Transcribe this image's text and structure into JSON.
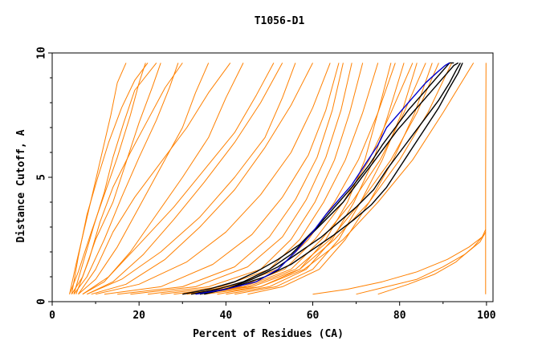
{
  "chart_data": {
    "type": "line",
    "title": "T1056-D1",
    "xlabel": "Percent of Residues (CA)",
    "ylabel": "Distance Cutoff, A",
    "xlim": [
      0,
      101.5
    ],
    "ylim": [
      0,
      10
    ],
    "xticks": [
      0,
      20,
      40,
      60,
      80,
      100
    ],
    "yticks": [
      0,
      5,
      10
    ],
    "grid": false,
    "colors": {
      "orange": "#ff8000",
      "black": "#000000",
      "blue": "#0000cc"
    },
    "series": [
      {
        "color": "orange",
        "x": [
          4,
          5.5,
          7.5,
          9.5,
          11.5,
          13.5,
          15,
          17
        ],
        "y": [
          0.3,
          1.5,
          3.0,
          4.5,
          6.0,
          7.5,
          8.8,
          9.6
        ]
      },
      {
        "color": "orange",
        "x": [
          4,
          6,
          9,
          12,
          15,
          18,
          20,
          21.5
        ],
        "y": [
          0.3,
          1.2,
          2.8,
          4.3,
          5.8,
          7.5,
          8.8,
          9.6
        ]
      },
      {
        "color": "orange",
        "x": [
          4.5,
          7,
          10,
          14,
          17,
          20,
          23,
          25
        ],
        "y": [
          0.3,
          1.0,
          2.5,
          4.0,
          5.6,
          7.2,
          8.6,
          9.6
        ]
      },
      {
        "color": "orange",
        "x": [
          5,
          8,
          12,
          16,
          20,
          24,
          27,
          29
        ],
        "y": [
          0.3,
          1.0,
          2.5,
          4.2,
          5.8,
          7.3,
          8.6,
          9.6
        ]
      },
      {
        "color": "orange",
        "x": [
          6,
          10,
          15,
          20,
          25,
          30,
          33,
          36
        ],
        "y": [
          0.3,
          0.9,
          2.2,
          3.8,
          5.4,
          7.0,
          8.4,
          9.6
        ]
      },
      {
        "color": "orange",
        "x": [
          7,
          12,
          18,
          24,
          30,
          36,
          40,
          44
        ],
        "y": [
          0.3,
          0.8,
          2.0,
          3.5,
          5.0,
          6.6,
          8.2,
          9.6
        ]
      },
      {
        "color": "orange",
        "x": [
          8,
          14,
          21,
          28,
          35,
          42,
          48,
          53
        ],
        "y": [
          0.3,
          0.8,
          1.9,
          3.3,
          4.8,
          6.4,
          8.0,
          9.6
        ]
      },
      {
        "color": "orange",
        "x": [
          9,
          17,
          26,
          34,
          42,
          49,
          55,
          60
        ],
        "y": [
          0.3,
          0.7,
          1.7,
          3.0,
          4.5,
          6.2,
          7.9,
          9.6
        ]
      },
      {
        "color": "orange",
        "x": [
          10,
          20,
          31,
          40,
          48,
          55,
          60,
          64
        ],
        "y": [
          0.3,
          0.7,
          1.6,
          2.8,
          4.3,
          6.0,
          7.8,
          9.6
        ]
      },
      {
        "color": "orange",
        "x": [
          12,
          25,
          37,
          46,
          53,
          59,
          63,
          66
        ],
        "y": [
          0.3,
          0.6,
          1.5,
          2.7,
          4.2,
          5.9,
          7.7,
          9.6
        ]
      },
      {
        "color": "orange",
        "x": [
          15,
          30,
          42,
          50,
          56,
          61,
          64.5,
          67
        ],
        "y": [
          0.3,
          0.6,
          1.4,
          2.6,
          4.1,
          5.8,
          7.7,
          9.6
        ]
      },
      {
        "color": "orange",
        "x": [
          18,
          33,
          45,
          53,
          58.5,
          63,
          66.5,
          69
        ],
        "y": [
          0.3,
          0.6,
          1.4,
          2.6,
          4.1,
          5.8,
          7.7,
          9.6
        ]
      },
      {
        "color": "orange",
        "x": [
          22,
          36,
          48,
          55,
          60.5,
          65,
          68.5,
          71.5
        ],
        "y": [
          0.3,
          0.6,
          1.3,
          2.5,
          4.0,
          5.7,
          7.6,
          9.6
        ]
      },
      {
        "color": "orange",
        "x": [
          25,
          39,
          50,
          57,
          62.5,
          67.5,
          71.5,
          75
        ],
        "y": [
          0.3,
          0.6,
          1.3,
          2.5,
          4.0,
          5.7,
          7.6,
          9.6
        ]
      },
      {
        "color": "orange",
        "x": [
          28,
          41,
          52,
          59,
          65,
          70.5,
          75,
          79
        ],
        "y": [
          0.3,
          0.6,
          1.3,
          2.5,
          4.0,
          5.7,
          7.6,
          9.6
        ]
      },
      {
        "color": "orange",
        "x": [
          30,
          43,
          53.5,
          60.5,
          67,
          73,
          78,
          83
        ],
        "y": [
          0.3,
          0.6,
          1.3,
          2.5,
          4.0,
          5.7,
          7.6,
          9.6
        ]
      },
      {
        "color": "orange",
        "x": [
          31,
          44,
          55,
          62,
          69,
          75.5,
          81,
          86
        ],
        "y": [
          0.3,
          0.6,
          1.3,
          2.5,
          4.0,
          5.7,
          7.6,
          9.6
        ]
      },
      {
        "color": "orange",
        "x": [
          32,
          45,
          56,
          64,
          71,
          78,
          84,
          89
        ],
        "y": [
          0.3,
          0.6,
          1.3,
          2.5,
          4.0,
          5.7,
          7.6,
          9.6
        ]
      },
      {
        "color": "orange",
        "x": [
          33,
          46,
          57,
          65,
          73,
          80,
          86.5,
          92
        ],
        "y": [
          0.3,
          0.6,
          1.3,
          2.5,
          4.0,
          5.7,
          7.6,
          9.6
        ]
      },
      {
        "color": "orange",
        "x": [
          35,
          48,
          58,
          67,
          75,
          83,
          90,
          97
        ],
        "y": [
          0.3,
          0.6,
          1.3,
          2.5,
          4.0,
          5.7,
          7.6,
          9.6
        ]
      },
      {
        "color": "orange",
        "x": [
          4.5,
          6,
          8,
          10.5,
          13,
          16,
          19,
          22
        ],
        "y": [
          0.3,
          1.8,
          3.5,
          5.0,
          6.4,
          7.8,
          8.9,
          9.6
        ]
      },
      {
        "color": "orange",
        "x": [
          5,
          7,
          9.5,
          12,
          14,
          16.5,
          19,
          24
        ],
        "y": [
          0.3,
          1.5,
          3.0,
          4.4,
          5.8,
          7.2,
          8.5,
          9.6
        ]
      },
      {
        "color": "orange",
        "x": [
          5.5,
          8.5,
          11,
          14,
          18,
          22,
          26,
          30
        ],
        "y": [
          0.3,
          1.7,
          3.2,
          4.6,
          6.0,
          7.3,
          8.6,
          9.6
        ]
      },
      {
        "color": "orange",
        "x": [
          6,
          10,
          14,
          19,
          25,
          31,
          36,
          41
        ],
        "y": [
          0.3,
          1.3,
          2.8,
          4.2,
          5.6,
          7.0,
          8.4,
          9.6
        ]
      },
      {
        "color": "orange",
        "x": [
          7,
          13,
          20,
          28,
          35,
          42,
          47,
          51
        ],
        "y": [
          0.3,
          1.0,
          2.3,
          3.8,
          5.3,
          6.8,
          8.3,
          9.6
        ]
      },
      {
        "color": "orange",
        "x": [
          8,
          16,
          25,
          34,
          42,
          49,
          53,
          56
        ],
        "y": [
          0.3,
          0.9,
          2.0,
          3.4,
          5.0,
          6.6,
          8.2,
          9.6
        ]
      },
      {
        "color": "orange",
        "x": [
          38,
          48,
          57,
          63,
          68,
          72,
          75,
          78
        ],
        "y": [
          0.3,
          0.6,
          1.3,
          2.5,
          4.0,
          5.7,
          7.6,
          9.6
        ]
      },
      {
        "color": "orange",
        "x": [
          40,
          50,
          58.5,
          64.5,
          69.5,
          74,
          77.5,
          81
        ],
        "y": [
          0.3,
          0.6,
          1.3,
          2.5,
          4.0,
          5.7,
          7.6,
          9.6
        ]
      },
      {
        "color": "orange",
        "x": [
          42,
          51.5,
          60,
          66,
          71,
          76,
          80.5,
          84
        ],
        "y": [
          0.3,
          0.6,
          1.3,
          2.5,
          4.0,
          5.7,
          7.6,
          9.6
        ]
      },
      {
        "color": "orange",
        "x": [
          45,
          53,
          61.5,
          67.5,
          73,
          78.5,
          83.5,
          87.5
        ],
        "y": [
          0.3,
          0.6,
          1.3,
          2.5,
          4.0,
          5.7,
          7.6,
          9.6
        ]
      },
      {
        "color": "orange",
        "x": [
          60,
          68,
          76,
          84,
          91,
          96,
          99,
          99.8
        ],
        "y": [
          0.3,
          0.5,
          0.8,
          1.2,
          1.7,
          2.2,
          2.6,
          2.9
        ]
      },
      {
        "color": "orange",
        "x": [
          70,
          77,
          84,
          90,
          95,
          98.5,
          99.8
        ],
        "y": [
          0.3,
          0.6,
          0.9,
          1.4,
          1.9,
          2.4,
          2.8
        ]
      },
      {
        "color": "orange",
        "x": [
          75,
          82,
          88,
          93,
          97,
          99.5
        ],
        "y": [
          0.3,
          0.7,
          1.1,
          1.6,
          2.2,
          2.7
        ]
      },
      {
        "color": "orange",
        "x": [
          99.8,
          99.8,
          99.9
        ],
        "y": [
          0.3,
          5.0,
          9.6
        ]
      },
      {
        "color": "black",
        "x": [
          30,
          36,
          42,
          47,
          52,
          57,
          61,
          65,
          69,
          73,
          76,
          79,
          82,
          85,
          88,
          90,
          91.5,
          92.5
        ],
        "y": [
          0.3,
          0.5,
          0.8,
          1.2,
          1.7,
          2.3,
          3.0,
          3.8,
          4.6,
          5.5,
          6.3,
          7.0,
          7.7,
          8.3,
          8.9,
          9.3,
          9.6,
          9.6
        ]
      },
      {
        "color": "black",
        "x": [
          32,
          38,
          44,
          50,
          55,
          59,
          63,
          67,
          70,
          73.5,
          76.5,
          79.5,
          82.5,
          85.5,
          88.5,
          91,
          92.5,
          93.5
        ],
        "y": [
          0.3,
          0.5,
          0.8,
          1.3,
          1.9,
          2.6,
          3.3,
          4.0,
          4.7,
          5.5,
          6.2,
          6.9,
          7.5,
          8.1,
          8.7,
          9.2,
          9.5,
          9.6
        ]
      },
      {
        "color": "black",
        "x": [
          34,
          40,
          46,
          52,
          57,
          62,
          66,
          70,
          74,
          77,
          80,
          83,
          86,
          89,
          91.5,
          93,
          94
        ],
        "y": [
          0.3,
          0.5,
          0.9,
          1.4,
          2.0,
          2.6,
          3.2,
          3.8,
          4.5,
          5.3,
          6.0,
          6.7,
          7.4,
          8.1,
          8.8,
          9.3,
          9.6
        ]
      },
      {
        "color": "black",
        "x": [
          35,
          42,
          49,
          55,
          60,
          65,
          69.5,
          73.5,
          77,
          80,
          83,
          86,
          89,
          91.5,
          93.5,
          94.5
        ],
        "y": [
          0.3,
          0.6,
          1.0,
          1.5,
          2.1,
          2.7,
          3.3,
          3.9,
          4.6,
          5.4,
          6.2,
          7.0,
          7.8,
          8.6,
          9.2,
          9.6
        ]
      },
      {
        "color": "blue",
        "x": [
          33,
          40,
          47,
          52,
          56,
          60,
          63,
          66,
          69,
          72,
          75,
          77,
          80,
          83,
          86,
          88.5,
          90.5,
          91.5
        ],
        "y": [
          0.3,
          0.5,
          0.8,
          1.3,
          2.0,
          2.8,
          3.5,
          4.1,
          4.7,
          5.5,
          6.3,
          7.0,
          7.6,
          8.2,
          8.8,
          9.2,
          9.5,
          9.6
        ]
      }
    ]
  }
}
